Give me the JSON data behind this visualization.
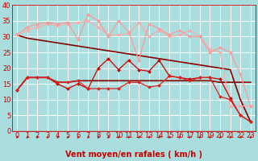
{
  "background_color": "#aadddd",
  "grid_color": "#ffffff",
  "xlabel": "Vent moyen/en rafales ( km/h )",
  "xlabel_color": "#cc0000",
  "xlabel_fontsize": 7,
  "tick_color": "#cc0000",
  "tick_fontsize": 6,
  "xlim": [
    -0.5,
    23.5
  ],
  "ylim": [
    0,
    40
  ],
  "yticks": [
    0,
    5,
    10,
    15,
    20,
    25,
    30,
    35,
    40
  ],
  "xticks": [
    0,
    1,
    2,
    3,
    4,
    5,
    6,
    7,
    8,
    9,
    10,
    11,
    12,
    13,
    14,
    15,
    16,
    17,
    18,
    19,
    20,
    21,
    22,
    23
  ],
  "lines": [
    {
      "x": [
        0,
        1,
        2,
        3,
        4,
        5,
        6,
        7,
        8,
        9,
        10,
        11,
        12,
        13,
        14,
        15,
        16,
        17,
        18,
        19,
        20,
        21,
        22,
        23
      ],
      "y": [
        30.5,
        32,
        33,
        34,
        33.5,
        34,
        34.5,
        35,
        33,
        30.5,
        30.5,
        31,
        34.5,
        30,
        32,
        30,
        30.5,
        32,
        30,
        26,
        25,
        8,
        8,
        8
      ],
      "color": "#ffaaaa",
      "lw": 0.9,
      "marker": "D",
      "ms": 2.0
    },
    {
      "x": [
        0,
        1,
        2,
        3,
        4,
        5,
        6,
        7,
        8,
        9,
        10,
        11,
        12,
        13,
        14,
        15,
        16,
        17,
        18,
        19,
        20,
        21,
        22,
        23
      ],
      "y": [
        30.5,
        33,
        34,
        34.5,
        34,
        34.5,
        29,
        37,
        35,
        30,
        35,
        31.5,
        22.5,
        34,
        32.5,
        30.5,
        32,
        30,
        30,
        25,
        26.5,
        25,
        18,
        8
      ],
      "color": "#ff9999",
      "lw": 0.9,
      "marker": "D",
      "ms": 2.0
    },
    {
      "x": [
        0,
        1,
        2,
        3,
        4,
        5,
        6,
        7,
        8,
        9,
        10,
        11,
        12,
        13,
        14,
        15,
        16,
        17,
        18,
        19,
        20,
        21,
        22,
        23
      ],
      "y": [
        13,
        17,
        17,
        17,
        15,
        13.5,
        15,
        13.5,
        20,
        23,
        19.5,
        22.5,
        19.5,
        19,
        22.5,
        17.5,
        17,
        16.5,
        17,
        17,
        16.5,
        10.5,
        5,
        3
      ],
      "color": "#cc0000",
      "lw": 0.9,
      "marker": "D",
      "ms": 2.0
    },
    {
      "x": [
        0,
        1,
        2,
        3,
        4,
        5,
        6,
        7,
        8,
        9,
        10,
        11,
        12,
        13,
        14,
        15,
        16,
        17,
        18,
        19,
        20,
        21,
        22,
        23
      ],
      "y": [
        13,
        17,
        17,
        17,
        15.5,
        15.5,
        16,
        13.5,
        13.5,
        13.5,
        13.5,
        15.5,
        15.5,
        14,
        14.5,
        17.5,
        17,
        16,
        17,
        17,
        11,
        10,
        5,
        3
      ],
      "color": "#dd2222",
      "lw": 0.9,
      "marker": "D",
      "ms": 2.0
    },
    {
      "x": [
        0,
        1,
        2,
        3,
        4,
        5,
        6,
        7,
        8,
        9,
        10,
        11,
        12,
        13,
        14,
        15,
        16,
        17,
        18,
        19,
        20,
        21,
        22,
        23
      ],
      "y": [
        13,
        17,
        17,
        17,
        15.5,
        15.5,
        16,
        16,
        16,
        16,
        16,
        16,
        16,
        16,
        16,
        16,
        16,
        16,
        16,
        16,
        15.5,
        15.5,
        15.5,
        15.5
      ],
      "color": "#880000",
      "lw": 1.2,
      "marker": null,
      "ms": 0
    },
    {
      "x": [
        0,
        1,
        2,
        3,
        4,
        5,
        6,
        7,
        8,
        9,
        10,
        11,
        12,
        13,
        14,
        15,
        16,
        17,
        18,
        19,
        20,
        21,
        22,
        23
      ],
      "y": [
        30.5,
        29.5,
        29,
        28.5,
        28,
        27.5,
        27,
        26.5,
        26,
        25.5,
        25,
        24.5,
        24,
        23.5,
        23,
        22.5,
        22,
        21.5,
        21,
        20.5,
        20,
        19.5,
        10,
        3
      ],
      "color": "#880000",
      "lw": 1.2,
      "marker": null,
      "ms": 0
    }
  ],
  "arrow_color": "#cc0000",
  "red_line_color": "#cc0000"
}
